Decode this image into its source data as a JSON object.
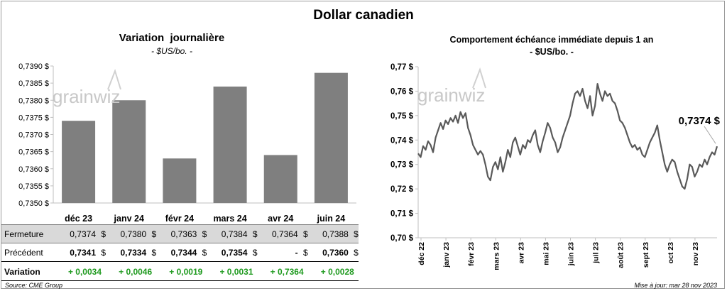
{
  "title": "Dollar canadien",
  "left_panel": {
    "title": "Variation  journalière",
    "subtitle": "- $US/bo. -",
    "watermark": "grainwiz"
  },
  "right_panel": {
    "title": "Comportement échéance immédiate depuis 1 an",
    "subtitle": "- $US/bo. -",
    "watermark": "grainwiz",
    "last_value_label": "0,7374 $"
  },
  "table": {
    "rows": [
      {
        "label": "Fermeture",
        "values": [
          "0,7374",
          "0,7380",
          "0,7363",
          "0,7384",
          "0,7364",
          "0,7388"
        ],
        "suffix": "$"
      },
      {
        "label": "Précédent",
        "values": [
          "0,7341",
          "0,7334",
          "0,7344",
          "0,7354",
          "-",
          "0,7360"
        ],
        "suffix": "$"
      },
      {
        "label": "Variation",
        "values": [
          "+ 0,0034",
          "+ 0,0046",
          "+ 0,0019",
          "+ 0,0031",
          "+ 0,7364",
          "+ 0,0028"
        ],
        "suffix": ""
      }
    ]
  },
  "source": "Source: CME Group",
  "updated": "Mise à jour: mar 28 nov 2023",
  "colors": {
    "bar": "#7f7f7f",
    "line": "#595959",
    "variation_text": "#1f9a1f",
    "table_header_bg": "#d9d9d9"
  },
  "chart_data": [
    {
      "type": "bar",
      "title": "Variation  journalière",
      "subtitle": "- $US/bo. -",
      "categories": [
        "déc 23",
        "janv 24",
        "févr 24",
        "mars 24",
        "avr 24",
        "juin 24"
      ],
      "values": [
        0.7374,
        0.738,
        0.7363,
        0.7384,
        0.7364,
        0.7388
      ],
      "ylim": [
        0.735,
        0.739
      ],
      "yticks": [
        0.735,
        0.7355,
        0.736,
        0.7365,
        0.737,
        0.7375,
        0.738,
        0.7385,
        0.739
      ],
      "ytick_labels": [
        "0,7350 $",
        "0,7355 $",
        "0,7360 $",
        "0,7365 $",
        "0,7370 $",
        "0,7375 $",
        "0,7380 $",
        "0,7385 $",
        "0,7390 $"
      ],
      "grid": false
    },
    {
      "type": "line",
      "title": "Comportement échéance immédiate depuis 1 an",
      "subtitle": "- $US/bo. -",
      "x_labels": [
        "déc 22",
        "janv 23",
        "févr 23",
        "mars 23",
        "avr 23",
        "mai 23",
        "juin 23",
        "juil 23",
        "août 23",
        "sept 23",
        "oct 23",
        "nov 23"
      ],
      "ylim": [
        0.7,
        0.77
      ],
      "yticks": [
        0.7,
        0.71,
        0.72,
        0.73,
        0.74,
        0.75,
        0.76,
        0.77
      ],
      "ytick_labels": [
        "0,70 $",
        "0,71 $",
        "0,72 $",
        "0,73 $",
        "0,74 $",
        "0,75 $",
        "0,76 $",
        "0,77 $"
      ],
      "grid": false,
      "annotation": "0,7374 $",
      "values": [
        0.7345,
        0.733,
        0.7375,
        0.736,
        0.7395,
        0.738,
        0.735,
        0.741,
        0.744,
        0.747,
        0.7445,
        0.748,
        0.7465,
        0.749,
        0.7475,
        0.75,
        0.747,
        0.7515,
        0.749,
        0.751,
        0.745,
        0.742,
        0.738,
        0.736,
        0.734,
        0.7355,
        0.734,
        0.73,
        0.725,
        0.7235,
        0.729,
        0.731,
        0.728,
        0.733,
        0.727,
        0.731,
        0.736,
        0.733,
        0.739,
        0.741,
        0.7375,
        0.734,
        0.738,
        0.7365,
        0.74,
        0.739,
        0.742,
        0.744,
        0.738,
        0.735,
        0.7395,
        0.743,
        0.747,
        0.745,
        0.741,
        0.739,
        0.735,
        0.737,
        0.741,
        0.744,
        0.747,
        0.75,
        0.755,
        0.759,
        0.76,
        0.758,
        0.761,
        0.756,
        0.753,
        0.758,
        0.75,
        0.754,
        0.763,
        0.759,
        0.756,
        0.76,
        0.758,
        0.759,
        0.756,
        0.755,
        0.752,
        0.748,
        0.747,
        0.745,
        0.742,
        0.739,
        0.737,
        0.738,
        0.736,
        0.737,
        0.734,
        0.733,
        0.736,
        0.739,
        0.741,
        0.743,
        0.746,
        0.74,
        0.735,
        0.73,
        0.727,
        0.73,
        0.732,
        0.731,
        0.727,
        0.724,
        0.721,
        0.72,
        0.724,
        0.73,
        0.729,
        0.725,
        0.727,
        0.73,
        0.729,
        0.732,
        0.73,
        0.733,
        0.735,
        0.734,
        0.7374
      ]
    }
  ]
}
